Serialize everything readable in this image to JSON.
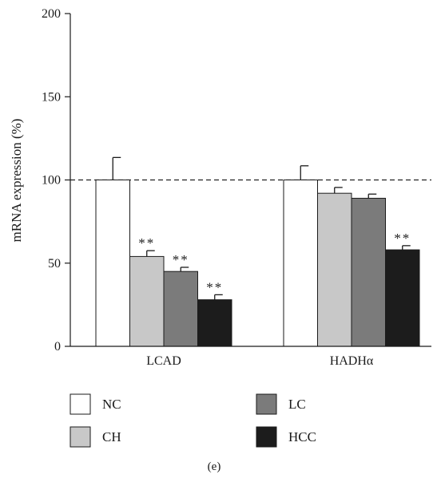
{
  "chart_data": {
    "type": "bar",
    "title": "",
    "xlabel": "",
    "ylabel": "mRNA expression (%)",
    "ylim": [
      0,
      200
    ],
    "yticks": [
      0,
      50,
      100,
      150,
      200
    ],
    "reference_line": 100,
    "reference_line_style": "dashed",
    "grid": false,
    "categories": [
      "LCAD",
      "HADHα"
    ],
    "series": [
      {
        "name": "NC",
        "color": "#ffffff",
        "values": [
          100,
          100
        ],
        "errors": [
          13.5,
          8.5
        ],
        "marks": [
          "",
          ""
        ]
      },
      {
        "name": "CH",
        "color": "#c8c8c8",
        "values": [
          54,
          92
        ],
        "errors": [
          3.5,
          3.5
        ],
        "marks": [
          "**",
          ""
        ]
      },
      {
        "name": "LC",
        "color": "#7b7b7b",
        "values": [
          45,
          89
        ],
        "errors": [
          2.5,
          2.5
        ],
        "marks": [
          "**",
          ""
        ]
      },
      {
        "name": "HCC",
        "color": "#1c1c1c",
        "values": [
          28,
          58
        ],
        "errors": [
          3.0,
          2.5
        ],
        "marks": [
          "**",
          "**"
        ]
      }
    ],
    "legend_placement": "bottom",
    "panel_label": "(e)"
  }
}
